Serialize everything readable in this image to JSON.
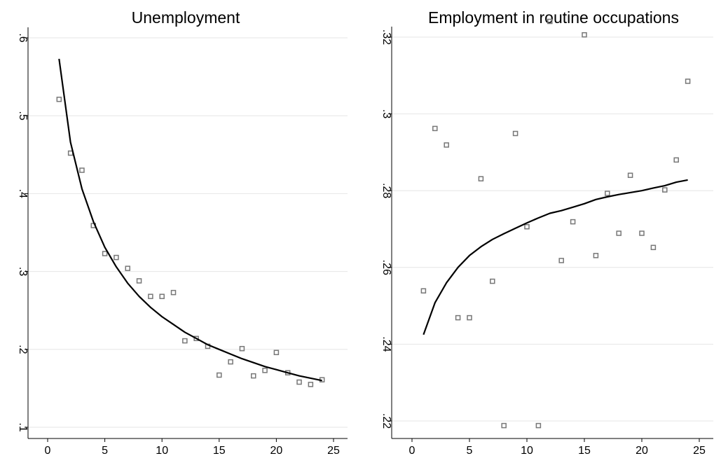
{
  "chart_data": [
    {
      "type": "scatter",
      "title": "Unemployment",
      "xlabel": "",
      "ylabel": "",
      "xlim": [
        0,
        25
      ],
      "ylim": [
        0.1,
        0.6
      ],
      "xticks": [
        0,
        5,
        10,
        15,
        20,
        25
      ],
      "xtick_labels": [
        "0",
        "5",
        "10",
        "15",
        "20",
        "25"
      ],
      "yticks": [
        0.1,
        0.2,
        0.3,
        0.4,
        0.5,
        0.6
      ],
      "ytick_labels": [
        ".1",
        ".2",
        ".3",
        ".4",
        ".5",
        ".6"
      ],
      "grid": true,
      "legend": "none",
      "marker_color": "#777777",
      "fit_color": "#000000",
      "points": {
        "x": [
          1,
          2,
          3,
          4,
          5,
          6,
          7,
          8,
          9,
          10,
          11,
          12,
          13,
          14,
          15,
          16,
          17,
          18,
          19,
          20,
          21,
          22,
          23,
          24
        ],
        "y": [
          0.521,
          0.452,
          0.43,
          0.359,
          0.323,
          0.318,
          0.304,
          0.288,
          0.268,
          0.268,
          0.273,
          0.211,
          0.214,
          0.204,
          0.167,
          0.184,
          0.201,
          0.166,
          0.173,
          0.196,
          0.17,
          0.158,
          0.155,
          0.161
        ]
      },
      "fit": {
        "x": [
          1,
          2,
          3,
          4,
          5,
          6,
          7,
          8,
          9,
          10,
          11,
          12,
          13,
          14,
          15,
          16,
          17,
          18,
          19,
          20,
          21,
          22,
          23,
          24
        ],
        "y": [
          0.573,
          0.466,
          0.406,
          0.364,
          0.331,
          0.306,
          0.285,
          0.268,
          0.254,
          0.242,
          0.232,
          0.222,
          0.214,
          0.206,
          0.2,
          0.194,
          0.188,
          0.183,
          0.178,
          0.174,
          0.17,
          0.166,
          0.163,
          0.16
        ]
      }
    },
    {
      "type": "scatter",
      "title": "Employment in routine occupations",
      "xlabel": "",
      "ylabel": "",
      "xlim": [
        0,
        25
      ],
      "ylim": [
        0.217,
        0.326
      ],
      "xticks": [
        0,
        5,
        10,
        15,
        20,
        25
      ],
      "xtick_labels": [
        "0",
        "5",
        "10",
        "15",
        "20",
        "25"
      ],
      "yticks": [
        0.22,
        0.24,
        0.26,
        0.28,
        0.3,
        0.32
      ],
      "ytick_labels": [
        ".22",
        ".24",
        ".26",
        ".28",
        ".3",
        ".32"
      ],
      "grid": true,
      "legend": "none",
      "marker_color": "#777777",
      "fit_color": "#000000",
      "points": {
        "x": [
          1,
          2,
          3,
          4,
          5,
          6,
          7,
          8,
          9,
          10,
          11,
          12,
          13,
          14,
          15,
          16,
          17,
          18,
          19,
          20,
          21,
          22,
          23,
          24
        ],
        "y": [
          0.2539,
          0.2962,
          0.2919,
          0.2469,
          0.2469,
          0.2831,
          0.2564,
          0.2188,
          0.2949,
          0.2706,
          0.2188,
          0.3241,
          0.2618,
          0.2719,
          0.3206,
          0.2631,
          0.2793,
          0.2689,
          0.284,
          0.2689,
          0.2652,
          0.2802,
          0.288,
          0.3085
        ]
      },
      "fit": {
        "x": [
          1,
          2,
          3,
          4,
          5,
          6,
          7,
          8,
          9,
          10,
          11,
          12,
          13,
          14,
          15,
          16,
          17,
          18,
          19,
          20,
          21,
          22,
          23,
          24
        ],
        "y": [
          0.2425,
          0.2508,
          0.256,
          0.26,
          0.2631,
          0.2654,
          0.2673,
          0.2688,
          0.2702,
          0.2716,
          0.2729,
          0.2741,
          0.2748,
          0.2757,
          0.2766,
          0.2777,
          0.2784,
          0.279,
          0.2795,
          0.28,
          0.2807,
          0.2813,
          0.2822,
          0.2828
        ]
      }
    }
  ]
}
